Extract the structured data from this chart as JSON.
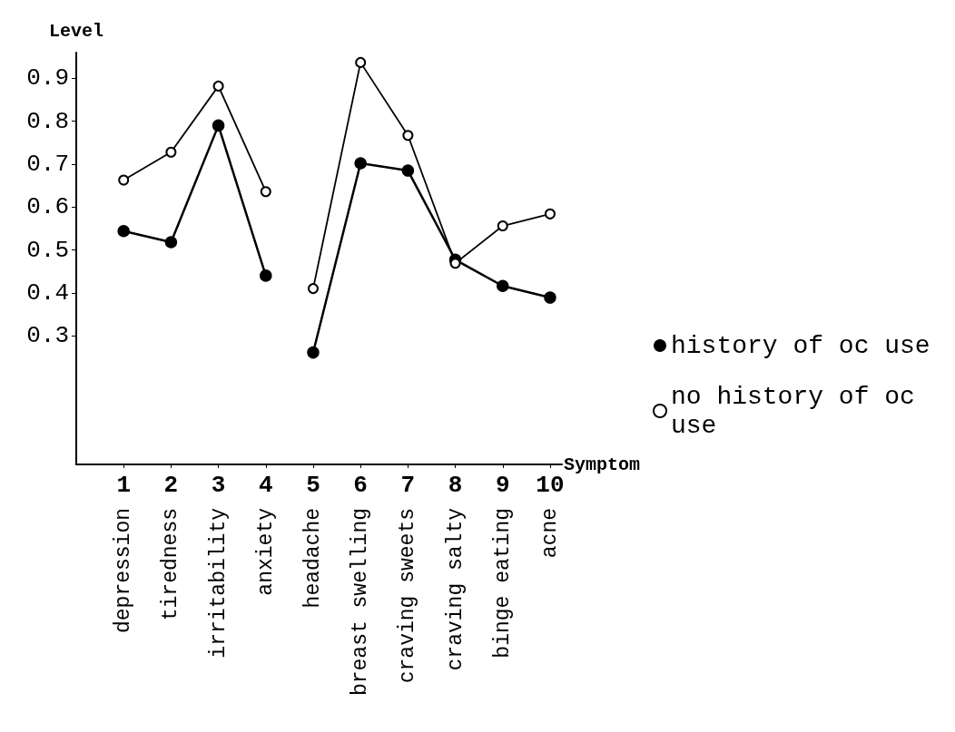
{
  "chart_data": {
    "type": "line",
    "xlabel": "Symptom",
    "ylabel": "Level",
    "x": [
      1,
      2,
      3,
      4,
      4.5,
      5,
      6,
      7,
      8,
      9,
      10
    ],
    "series": [
      {
        "name": "history of oc use",
        "color": "#000000",
        "marker": "circle",
        "values": [
          0.544,
          0.518,
          0.79,
          0.44,
          null,
          0.261,
          0.702,
          0.685,
          0.477,
          0.416,
          0.389
        ]
      },
      {
        "name": "no history of oc use",
        "color": "#000000",
        "marker": "circle",
        "values": [
          0.663,
          0.728,
          0.882,
          0.636,
          null,
          0.41,
          0.937,
          0.767,
          0.469,
          0.556,
          0.584
        ]
      }
    ],
    "annotations": [
      "depression",
      "tiredness",
      "irritability",
      "anxiety",
      "headache",
      "breast swelling",
      "craving sweets",
      "craving salty",
      "binge eating",
      "acne"
    ],
    "xlim": [
      0,
      10.25
    ],
    "xticks": [
      1,
      2,
      3,
      4,
      5,
      6,
      7,
      8,
      9,
      10
    ],
    "ylim": [
      0,
      0.96
    ],
    "yticks": [
      0.3,
      0.4,
      0.5,
      0.6,
      0.7,
      0.8,
      0.9
    ],
    "grid": false,
    "legend": "right",
    "line_style": "solid"
  }
}
